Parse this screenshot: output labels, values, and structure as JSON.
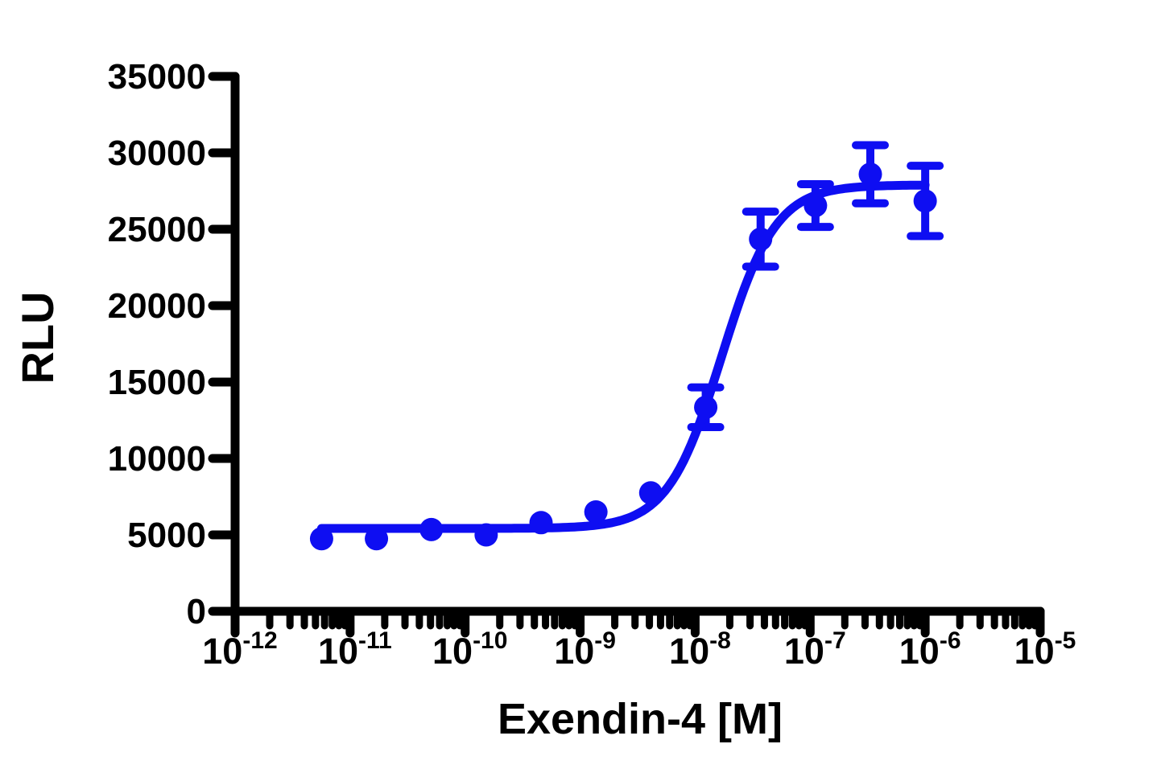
{
  "figure": {
    "background": "#ffffff",
    "kind": "dose-response-curve"
  },
  "chart_data": {
    "type": "scatter",
    "title": "",
    "xlabel": "Exendin-4 [M]",
    "ylabel": "RLU",
    "x_scale": "log10",
    "xlim_log": [
      -12,
      -5
    ],
    "ylim": [
      0,
      35000
    ],
    "grid": false,
    "legend": "none",
    "y_ticks": [
      {
        "value": 0,
        "label": "0"
      },
      {
        "value": 5000,
        "label": "5000"
      },
      {
        "value": 10000,
        "label": "10000"
      },
      {
        "value": 15000,
        "label": "15000"
      },
      {
        "value": 20000,
        "label": "20000"
      },
      {
        "value": 25000,
        "label": "25000"
      },
      {
        "value": 30000,
        "label": "30000"
      },
      {
        "value": 35000,
        "label": "35000"
      }
    ],
    "x_ticks": [
      {
        "log": -12,
        "base": "10",
        "exp": "-12"
      },
      {
        "log": -11,
        "base": "10",
        "exp": "-11"
      },
      {
        "log": -10,
        "base": "10",
        "exp": "-10"
      },
      {
        "log": -9,
        "base": "10",
        "exp": "-9"
      },
      {
        "log": -8,
        "base": "10",
        "exp": "-8"
      },
      {
        "log": -7,
        "base": "10",
        "exp": "-7"
      },
      {
        "log": -6,
        "base": "10",
        "exp": "-6"
      },
      {
        "log": -5,
        "base": "10",
        "exp": "-5"
      }
    ],
    "x_minor_decades": [
      -12,
      -11,
      -10,
      -9,
      -8,
      -7,
      -6
    ],
    "series": [
      {
        "name": "Exendin-4",
        "color": "#0e0ef2",
        "marker": "circle",
        "points": [
          {
            "conc": "5.6e-12",
            "logx": -11.248,
            "rlu": 4750,
            "err": null
          },
          {
            "conc": "1.7e-11",
            "logx": -10.771,
            "rlu": 4750,
            "err": null
          },
          {
            "conc": "5.1e-11",
            "logx": -10.294,
            "rlu": 5350,
            "err": null
          },
          {
            "conc": "1.5e-10",
            "logx": -9.817,
            "rlu": 5000,
            "err": null
          },
          {
            "conc": "4.6e-10",
            "logx": -9.34,
            "rlu": 5800,
            "err": null
          },
          {
            "conc": "1.4e-9",
            "logx": -8.863,
            "rlu": 6500,
            "err": null
          },
          {
            "conc": "4.1e-9",
            "logx": -8.386,
            "rlu": 7750,
            "err": null
          },
          {
            "conc": "1.2e-8",
            "logx": -7.908,
            "rlu": 13350,
            "err": 1300
          },
          {
            "conc": "3.7e-8",
            "logx": -7.431,
            "rlu": 24350,
            "err": 1800
          },
          {
            "conc": "1.1e-7",
            "logx": -6.954,
            "rlu": 26550,
            "err": 1400
          },
          {
            "conc": "3.4e-7",
            "logx": -6.477,
            "rlu": 28600,
            "err": 1900
          },
          {
            "conc": "1.0e-6",
            "logx": -6.0,
            "rlu": 26850,
            "err": 2300
          }
        ],
        "fit": {
          "model": "4PL",
          "bottom": 5420,
          "top": 27900,
          "logEC50": -7.77,
          "hill": 1.85,
          "x_start": -11.248,
          "x_end": -6.0
        }
      }
    ],
    "axis_color": "#000000",
    "text_color": "#000000"
  }
}
